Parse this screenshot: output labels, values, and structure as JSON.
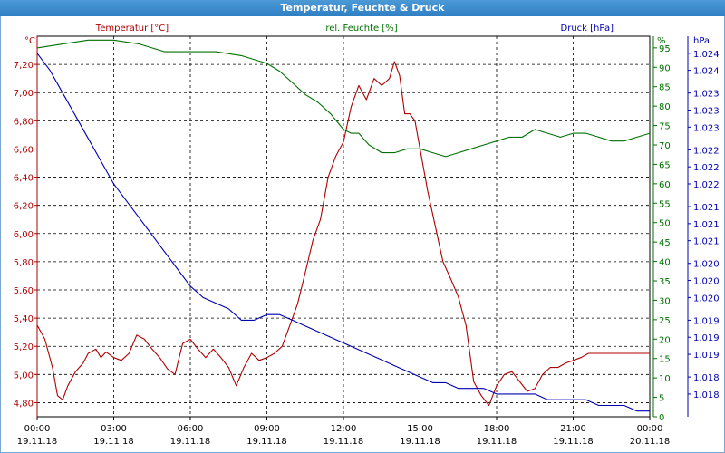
{
  "window": {
    "title": "Temperatur, Feuchte & Druck"
  },
  "chart_data": {
    "type": "line",
    "title": "Temperatur, Feuchte & Druck",
    "grid": true,
    "legend": "top",
    "x_ticks": [
      {
        "time": "00:00",
        "date": "19.11.18"
      },
      {
        "time": "03:00",
        "date": "19.11.18"
      },
      {
        "time": "06:00",
        "date": "19.11.18"
      },
      {
        "time": "09:00",
        "date": "19.11.18"
      },
      {
        "time": "12:00",
        "date": "19.11.18"
      },
      {
        "time": "15:00",
        "date": "19.11.18"
      },
      {
        "time": "18:00",
        "date": "19.11.18"
      },
      {
        "time": "21:00",
        "date": "19.11.18"
      },
      {
        "time": "00:00",
        "date": "20.11.18"
      }
    ],
    "x_range_hours": [
      0,
      24
    ],
    "axes": {
      "temperature": {
        "unit": "°C",
        "range": [
          4.7,
          7.4
        ],
        "color": "#b00000",
        "ticks": [
          "4,80",
          "5,00",
          "5,20",
          "5,40",
          "5,60",
          "5,80",
          "6,00",
          "6,20",
          "6,40",
          "6,60",
          "6,80",
          "7,00",
          "7,20"
        ]
      },
      "humidity": {
        "unit": "%",
        "range": [
          0,
          98
        ],
        "color": "#007000",
        "ticks": [
          "0",
          "5",
          "10",
          "15",
          "20",
          "25",
          "30",
          "35",
          "40",
          "45",
          "50",
          "55",
          "60",
          "65",
          "70",
          "75",
          "80",
          "85",
          "90",
          "95"
        ]
      },
      "pressure": {
        "unit": "hPa",
        "range": [
          1.0176,
          1.0243
        ],
        "color": "#0000b0",
        "tick_values": [
          1.018,
          1.0183,
          1.0187,
          1.019,
          1.0193,
          1.0197,
          1.02,
          1.0203,
          1.0207,
          1.021,
          1.0213,
          1.0217,
          1.022,
          1.0223,
          1.0227,
          1.023,
          1.0233,
          1.0237,
          1.024
        ],
        "tick_labels": [
          "1.018",
          "1.018",
          "1.019",
          "1.019",
          "1.019",
          "1.020",
          "1.020",
          "1.020",
          "1.021",
          "1.021",
          "1.021",
          "1.022",
          "1.022",
          "1.022",
          "1.023",
          "1.023",
          "1.023",
          "1.024",
          "1.024"
        ]
      }
    },
    "series": [
      {
        "name": "Temperatur [°C]",
        "axis": "temperature",
        "color": "#b00000",
        "x": [
          0,
          0.3,
          0.6,
          0.8,
          1.0,
          1.2,
          1.5,
          1.8,
          2.0,
          2.3,
          2.5,
          2.7,
          3.0,
          3.3,
          3.6,
          3.9,
          4.2,
          4.5,
          4.8,
          5.1,
          5.4,
          5.7,
          6.0,
          6.3,
          6.6,
          6.9,
          7.2,
          7.5,
          7.8,
          8.1,
          8.4,
          8.7,
          9.0,
          9.3,
          9.6,
          9.9,
          10.2,
          10.5,
          10.8,
          11.1,
          11.4,
          11.7,
          12.0,
          12.3,
          12.6,
          12.9,
          13.2,
          13.5,
          13.8,
          14.0,
          14.2,
          14.4,
          14.6,
          14.8,
          15.0,
          15.3,
          15.6,
          15.9,
          16.2,
          16.5,
          16.8,
          17.1,
          17.4,
          17.7,
          18.0,
          18.3,
          18.6,
          18.9,
          19.2,
          19.5,
          19.8,
          20.1,
          20.4,
          20.7,
          21.0,
          21.3,
          21.6,
          21.9,
          22.2,
          22.5,
          22.8,
          23.1,
          23.4,
          23.7,
          24.0
        ],
        "values": [
          5.35,
          5.25,
          5.05,
          4.85,
          4.82,
          4.92,
          5.02,
          5.08,
          5.15,
          5.18,
          5.12,
          5.16,
          5.12,
          5.1,
          5.15,
          5.28,
          5.25,
          5.18,
          5.12,
          5.04,
          5.0,
          5.22,
          5.25,
          5.18,
          5.12,
          5.18,
          5.12,
          5.05,
          4.92,
          5.05,
          5.15,
          5.1,
          5.12,
          5.15,
          5.2,
          5.35,
          5.5,
          5.72,
          5.95,
          6.1,
          6.4,
          6.55,
          6.65,
          6.9,
          7.05,
          6.95,
          7.1,
          7.05,
          7.1,
          7.22,
          7.12,
          6.85,
          6.85,
          6.8,
          6.6,
          6.3,
          6.05,
          5.8,
          5.68,
          5.55,
          5.35,
          4.95,
          4.85,
          4.78,
          4.92,
          5.0,
          5.02,
          4.95,
          4.88,
          4.9,
          5.0,
          5.05,
          5.05,
          5.08,
          5.1,
          5.12,
          5.15,
          5.15,
          5.15,
          5.15,
          5.15,
          5.15,
          5.15,
          5.15,
          5.15
        ]
      },
      {
        "name": "rel. Feuchte [%]",
        "axis": "humidity",
        "color": "#007000",
        "x": [
          0,
          1,
          2,
          3,
          4,
          5,
          6,
          7,
          8,
          9,
          9.5,
          10,
          10.5,
          11,
          11.5,
          12,
          12.3,
          12.6,
          13,
          13.5,
          14,
          14.5,
          15,
          15.5,
          16,
          16.5,
          17,
          17.5,
          18,
          18.5,
          19,
          19.5,
          20,
          20.5,
          21,
          21.5,
          22,
          22.5,
          23,
          23.5,
          24
        ],
        "values": [
          95,
          96,
          97,
          97,
          96,
          94,
          94,
          94,
          93,
          91,
          89,
          86,
          83,
          81,
          78,
          74,
          73,
          73,
          70,
          68,
          68,
          69,
          69,
          68,
          67,
          68,
          69,
          70,
          71,
          72,
          72,
          74,
          73,
          72,
          73,
          73,
          72,
          71,
          71,
          72,
          73
        ]
      },
      {
        "name": "Druck [hPa]",
        "axis": "pressure",
        "color": "#0000b0",
        "x": [
          0,
          0.5,
          1,
          1.5,
          2,
          2.5,
          3,
          3.5,
          4,
          4.5,
          5,
          5.5,
          6,
          6.5,
          7,
          7.5,
          8,
          8.5,
          9,
          9.5,
          10,
          10.5,
          11,
          11.5,
          12,
          12.5,
          13,
          13.5,
          14,
          14.5,
          15,
          15.5,
          16,
          16.5,
          17,
          17.5,
          18,
          18.5,
          19,
          19.5,
          20,
          20.5,
          21,
          21.5,
          22,
          22.5,
          23,
          23.5,
          24
        ],
        "values": [
          1.024,
          1.0237,
          1.0233,
          1.0229,
          1.0225,
          1.0221,
          1.0217,
          1.0214,
          1.0211,
          1.0208,
          1.0205,
          1.0202,
          1.0199,
          1.0197,
          1.0196,
          1.0195,
          1.0193,
          1.0193,
          1.0194,
          1.0194,
          1.0193,
          1.0192,
          1.0191,
          1.019,
          1.0189,
          1.0188,
          1.0187,
          1.0186,
          1.0185,
          1.0184,
          1.0183,
          1.0182,
          1.0182,
          1.0181,
          1.0181,
          1.0181,
          1.018,
          1.018,
          1.018,
          1.018,
          1.0179,
          1.0179,
          1.0179,
          1.0179,
          1.0178,
          1.0178,
          1.0178,
          1.0177,
          1.0177
        ]
      }
    ]
  }
}
